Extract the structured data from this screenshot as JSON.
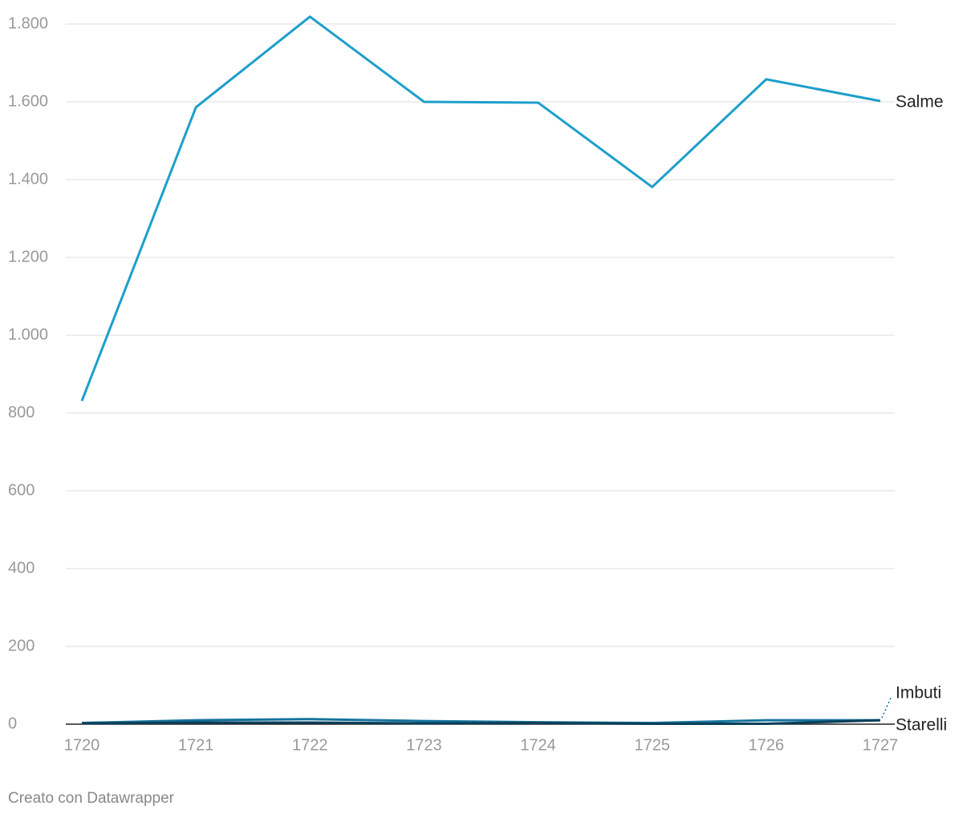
{
  "chart_data": {
    "type": "line",
    "categories": [
      "1720",
      "1721",
      "1722",
      "1723",
      "1724",
      "1725",
      "1726",
      "1727"
    ],
    "series": [
      {
        "name": "Salme",
        "color": "#1d9fcb",
        "values": [
          831,
          1586,
          1819,
          1600,
          1598,
          1381,
          1658,
          1602
        ]
      },
      {
        "name": "Imbuti",
        "color": "#14739c",
        "values": [
          3,
          10,
          13,
          8,
          5,
          3,
          10,
          10
        ]
      },
      {
        "name": "Starelli",
        "color": "#0b3f5a",
        "values": [
          2,
          4,
          4,
          2,
          3,
          1,
          1,
          10
        ]
      }
    ],
    "ylim": [
      0,
      1800
    ],
    "yticks": [
      0,
      200,
      400,
      600,
      800,
      {
        "value": 1000,
        "label": "1.000"
      },
      {
        "value": 1200,
        "label": "1.200"
      },
      {
        "value": 1400,
        "label": "1.400"
      },
      {
        "value": 1600,
        "label": "1.600"
      },
      {
        "value": 1800,
        "label": "1.800"
      }
    ],
    "grid": true,
    "footer": "Creato con Datawrapper"
  }
}
